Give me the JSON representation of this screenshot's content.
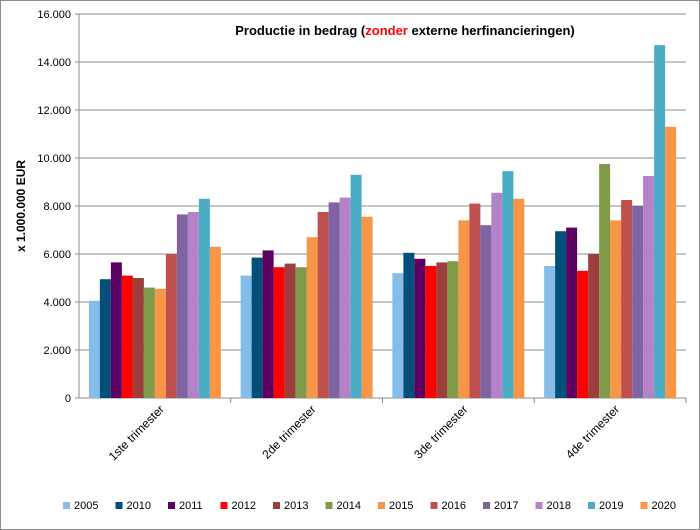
{
  "chart_data": {
    "type": "bar",
    "title_parts": [
      "Productie in bedrag (",
      "zonder",
      " externe herfinancieringen)"
    ],
    "title_colors": [
      "#000000",
      "#ff0000",
      "#000000"
    ],
    "ylabel": "x 1.000.000  EUR",
    "xlabel": "",
    "ylim": [
      0,
      16000
    ],
    "yticks": [
      0,
      2000,
      4000,
      6000,
      8000,
      10000,
      12000,
      14000,
      16000
    ],
    "ytick_labels": [
      "0",
      "2.000",
      "4.000",
      "6.000",
      "8.000",
      "10.000",
      "12.000",
      "14.000",
      "16.000"
    ],
    "grid": true,
    "legend_placement": "bottom",
    "categories": [
      "1ste trimester",
      "2de trimester",
      "3de trimester",
      "4de trimester"
    ],
    "series": [
      {
        "name": "2005",
        "color": "#85bde8",
        "values": [
          4050,
          5100,
          5200,
          5500
        ]
      },
      {
        "name": "2010",
        "color": "#004f7a",
        "values": [
          4950,
          5850,
          6050,
          6950
        ]
      },
      {
        "name": "2011",
        "color": "#5c0062",
        "values": [
          5650,
          6150,
          5800,
          7100
        ]
      },
      {
        "name": "2012",
        "color": "#ff0000",
        "values": [
          5100,
          5450,
          5500,
          5300
        ]
      },
      {
        "name": "2013",
        "color": "#9c3f3c",
        "values": [
          5000,
          5600,
          5650,
          6000
        ]
      },
      {
        "name": "2014",
        "color": "#7f9a48",
        "values": [
          4600,
          5450,
          5700,
          9750
        ]
      },
      {
        "name": "2015",
        "color": "#f79646",
        "values": [
          4550,
          6700,
          7400,
          7400
        ]
      },
      {
        "name": "2016",
        "color": "#c0504d",
        "values": [
          6000,
          7750,
          8100,
          8250
        ]
      },
      {
        "name": "2017",
        "color": "#8064a2",
        "values": [
          7650,
          8150,
          7200,
          8000
        ]
      },
      {
        "name": "2018",
        "color": "#b382c8",
        "values": [
          7750,
          8350,
          8550,
          9250
        ]
      },
      {
        "name": "2019",
        "color": "#4bacc6",
        "values": [
          8300,
          9300,
          9450,
          14700
        ]
      },
      {
        "name": "2020",
        "color": "#f79646",
        "values": [
          6300,
          7550,
          8300,
          11300
        ]
      }
    ]
  }
}
